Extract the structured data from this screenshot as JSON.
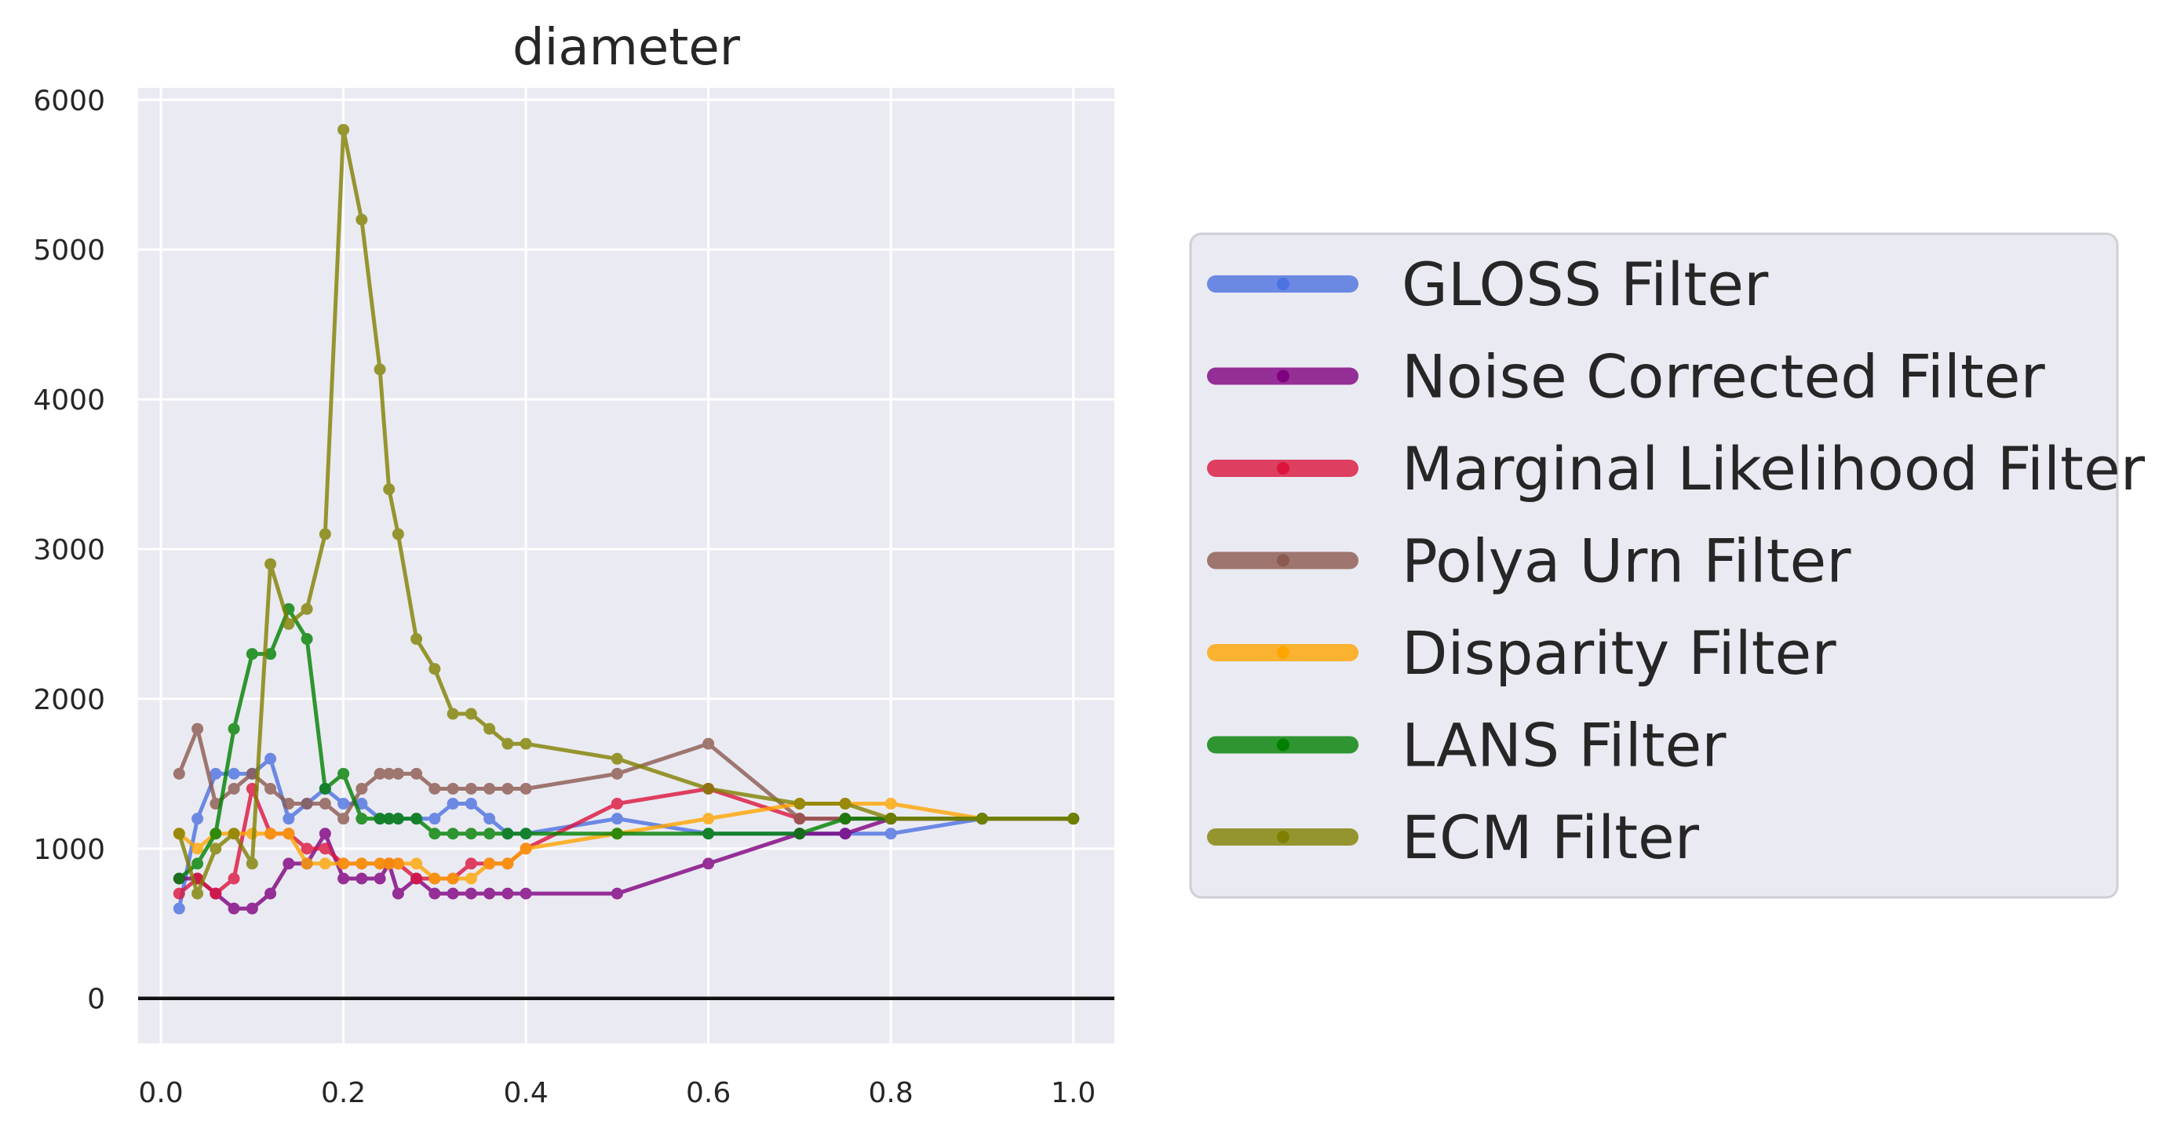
{
  "chart_data": {
    "type": "line",
    "title": "diameter",
    "xlabel": "",
    "ylabel": "",
    "xlim": [
      -0.025,
      1.045
    ],
    "ylim": [
      -300,
      6080
    ],
    "xticks": [
      0.0,
      0.2,
      0.4,
      0.6,
      0.8,
      1.0
    ],
    "xtick_labels": [
      "0.0",
      "0.2",
      "0.4",
      "0.6",
      "0.8",
      "1.0"
    ],
    "yticks": [
      0,
      1000,
      2000,
      3000,
      4000,
      5000,
      6000
    ],
    "ytick_labels": [
      "0",
      "1000",
      "2000",
      "3000",
      "4000",
      "5000",
      "6000"
    ],
    "grid": true,
    "zero_line": true,
    "legend_position": "right",
    "series": [
      {
        "name": "GLOSS Filter",
        "color": "#4c72e0",
        "x": [
          0.02,
          0.04,
          0.06,
          0.08,
          0.1,
          0.12,
          0.14,
          0.16,
          0.18,
          0.2,
          0.22,
          0.24,
          0.25,
          0.26,
          0.28,
          0.3,
          0.32,
          0.34,
          0.36,
          0.38,
          0.4,
          0.5,
          0.6,
          0.7,
          0.75,
          0.8,
          0.9,
          1.0
        ],
        "y": [
          600,
          1200,
          1500,
          1500,
          1500,
          1600,
          1200,
          1300,
          1400,
          1300,
          1300,
          1200,
          1200,
          1200,
          1200,
          1200,
          1300,
          1300,
          1200,
          1100,
          1100,
          1200,
          1100,
          1100,
          1100,
          1100,
          1200,
          1200
        ]
      },
      {
        "name": "Noise Corrected Filter",
        "color": "#800080",
        "x": [
          0.02,
          0.04,
          0.06,
          0.08,
          0.1,
          0.12,
          0.14,
          0.16,
          0.18,
          0.2,
          0.22,
          0.24,
          0.25,
          0.26,
          0.28,
          0.3,
          0.32,
          0.34,
          0.36,
          0.38,
          0.4,
          0.5,
          0.6,
          0.7,
          0.75,
          0.8,
          0.9,
          1.0
        ],
        "y": [
          800,
          800,
          700,
          600,
          600,
          700,
          900,
          900,
          1100,
          800,
          800,
          800,
          900,
          700,
          800,
          700,
          700,
          700,
          700,
          700,
          700,
          700,
          900,
          1100,
          1100,
          1200,
          1200,
          1200
        ]
      },
      {
        "name": "Marginal Likelihood Filter",
        "color": "#dc143c",
        "x": [
          0.02,
          0.04,
          0.06,
          0.08,
          0.1,
          0.12,
          0.14,
          0.16,
          0.18,
          0.2,
          0.22,
          0.24,
          0.25,
          0.26,
          0.28,
          0.3,
          0.32,
          0.34,
          0.36,
          0.38,
          0.4,
          0.5,
          0.6,
          0.7,
          0.75,
          0.8,
          0.9,
          1.0
        ],
        "y": [
          700,
          800,
          700,
          800,
          1400,
          1100,
          1100,
          1000,
          1000,
          900,
          900,
          900,
          900,
          900,
          800,
          800,
          800,
          900,
          900,
          900,
          1000,
          1300,
          1400,
          1200,
          1200,
          1200,
          1200,
          1200
        ]
      },
      {
        "name": "Polya Urn Filter",
        "color": "#8c5a4f",
        "x": [
          0.02,
          0.04,
          0.06,
          0.08,
          0.1,
          0.12,
          0.14,
          0.16,
          0.18,
          0.2,
          0.22,
          0.24,
          0.25,
          0.26,
          0.28,
          0.3,
          0.32,
          0.34,
          0.36,
          0.38,
          0.4,
          0.5,
          0.6,
          0.7,
          0.75,
          0.8,
          0.9,
          1.0
        ],
        "y": [
          1500,
          1800,
          1300,
          1400,
          1500,
          1400,
          1300,
          1300,
          1300,
          1200,
          1400,
          1500,
          1500,
          1500,
          1500,
          1400,
          1400,
          1400,
          1400,
          1400,
          1400,
          1500,
          1700,
          1200,
          1200,
          1200,
          1200,
          1200
        ]
      },
      {
        "name": "Disparity Filter",
        "color": "#ffa500",
        "x": [
          0.02,
          0.04,
          0.06,
          0.08,
          0.1,
          0.12,
          0.14,
          0.16,
          0.18,
          0.2,
          0.22,
          0.24,
          0.25,
          0.26,
          0.28,
          0.3,
          0.32,
          0.34,
          0.36,
          0.38,
          0.4,
          0.5,
          0.6,
          0.7,
          0.75,
          0.8,
          0.9,
          1.0
        ],
        "y": [
          1100,
          1000,
          1100,
          1100,
          1100,
          1100,
          1100,
          900,
          900,
          900,
          900,
          900,
          900,
          900,
          900,
          800,
          800,
          800,
          900,
          900,
          1000,
          1100,
          1200,
          1300,
          1300,
          1300,
          1200,
          1200
        ]
      },
      {
        "name": "LANS Filter",
        "color": "#008000",
        "x": [
          0.02,
          0.04,
          0.06,
          0.08,
          0.1,
          0.12,
          0.14,
          0.16,
          0.18,
          0.2,
          0.22,
          0.24,
          0.25,
          0.26,
          0.28,
          0.3,
          0.32,
          0.34,
          0.36,
          0.38,
          0.4,
          0.5,
          0.6,
          0.7,
          0.75,
          0.8,
          0.9,
          1.0
        ],
        "y": [
          800,
          900,
          1100,
          1800,
          2300,
          2300,
          2600,
          2400,
          1400,
          1500,
          1200,
          1200,
          1200,
          1200,
          1200,
          1100,
          1100,
          1100,
          1100,
          1100,
          1100,
          1100,
          1100,
          1100,
          1200,
          1200,
          1200,
          1200
        ]
      },
      {
        "name": "ECM Filter",
        "color": "#808000",
        "x": [
          0.02,
          0.04,
          0.06,
          0.08,
          0.1,
          0.12,
          0.14,
          0.16,
          0.18,
          0.2,
          0.22,
          0.24,
          0.25,
          0.26,
          0.28,
          0.3,
          0.32,
          0.34,
          0.36,
          0.38,
          0.4,
          0.5,
          0.6,
          0.7,
          0.75,
          0.8,
          0.9,
          1.0
        ],
        "y": [
          1100,
          700,
          1000,
          1100,
          900,
          2900,
          2500,
          2600,
          3100,
          5800,
          5200,
          4200,
          3400,
          3100,
          2400,
          2200,
          1900,
          1900,
          1800,
          1700,
          1700,
          1600,
          1400,
          1300,
          1300,
          1200,
          1200,
          1200
        ]
      }
    ]
  }
}
